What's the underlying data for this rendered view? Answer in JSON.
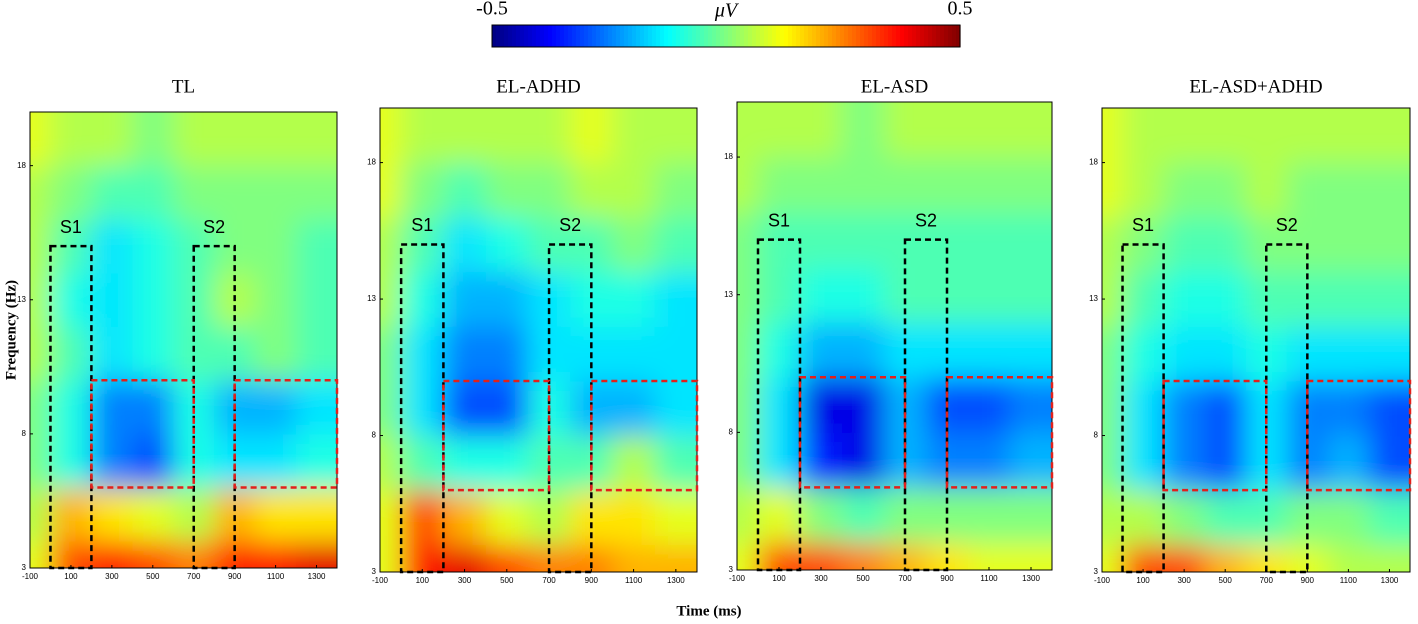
{
  "figure": {
    "xlabel": "Time (ms)",
    "ylabel": "Frequency (Hz)",
    "colorbar": {
      "label": "μV",
      "lim": [
        -0.5,
        0.5
      ],
      "ticks": [
        -0.5,
        0.5
      ],
      "colormap": "jet"
    }
  },
  "chart_data": [
    {
      "type": "heatmap",
      "title": "TL",
      "x": [
        -100,
        100,
        300,
        500,
        700,
        900,
        1100,
        1300
      ],
      "y": [
        3,
        5,
        7,
        9,
        11,
        13,
        15,
        17,
        19
      ],
      "z": [
        [
          0.1,
          0.3,
          0.35,
          0.3,
          0.25,
          0.35,
          0.35,
          0.4
        ],
        [
          0.05,
          0.2,
          0.15,
          0.1,
          0.05,
          0.2,
          0.15,
          0.15
        ],
        [
          0.0,
          -0.1,
          -0.25,
          -0.3,
          -0.1,
          -0.15,
          -0.15,
          -0.1
        ],
        [
          0.0,
          -0.1,
          -0.25,
          -0.25,
          -0.1,
          -0.2,
          -0.2,
          -0.15
        ],
        [
          0.05,
          -0.05,
          -0.15,
          -0.1,
          -0.05,
          -0.05,
          0.0,
          -0.05
        ],
        [
          0.05,
          -0.1,
          -0.15,
          -0.1,
          -0.05,
          0.05,
          0.0,
          -0.05
        ],
        [
          0.05,
          -0.05,
          -0.15,
          -0.1,
          -0.05,
          0.0,
          0.0,
          -0.05
        ],
        [
          0.05,
          0.0,
          -0.05,
          -0.05,
          0.0,
          0.0,
          0.0,
          0.0
        ],
        [
          0.1,
          0.05,
          0.05,
          0.0,
          0.05,
          0.05,
          0.05,
          0.05
        ]
      ],
      "xlim": [
        -100,
        1400
      ],
      "ylim": [
        3,
        20
      ],
      "xticks": [
        -100,
        100,
        300,
        500,
        700,
        900,
        1100,
        1300
      ],
      "yticks": [
        3,
        8,
        13,
        18
      ],
      "windows": [
        {
          "label": "S1",
          "x": [
            0,
            200
          ],
          "y": [
            3,
            15
          ]
        },
        {
          "label": "S2",
          "x": [
            700,
            900
          ],
          "y": [
            3,
            15
          ]
        }
      ],
      "rois": [
        {
          "x": [
            200,
            700
          ],
          "y": [
            6,
            10
          ]
        },
        {
          "x": [
            900,
            1400
          ],
          "y": [
            6,
            10
          ]
        }
      ]
    },
    {
      "type": "heatmap",
      "title": "EL-ADHD",
      "x": [
        -100,
        100,
        300,
        500,
        700,
        900,
        1100,
        1300
      ],
      "y": [
        3,
        5,
        7,
        9,
        11,
        13,
        15,
        17,
        19
      ],
      "z": [
        [
          0.1,
          0.35,
          0.4,
          0.3,
          0.25,
          0.25,
          0.2,
          0.2
        ],
        [
          0.1,
          0.3,
          0.2,
          0.1,
          0.05,
          0.15,
          0.15,
          0.1
        ],
        [
          0.05,
          -0.05,
          -0.1,
          -0.1,
          -0.05,
          -0.05,
          0.05,
          -0.05
        ],
        [
          0.0,
          -0.15,
          -0.3,
          -0.3,
          -0.1,
          -0.2,
          -0.2,
          -0.15
        ],
        [
          0.0,
          -0.15,
          -0.25,
          -0.25,
          -0.15,
          -0.15,
          -0.15,
          -0.15
        ],
        [
          0.05,
          -0.1,
          -0.2,
          -0.2,
          -0.15,
          -0.1,
          -0.1,
          -0.15
        ],
        [
          0.05,
          -0.05,
          -0.15,
          -0.1,
          -0.05,
          -0.05,
          0.0,
          -0.05
        ],
        [
          0.1,
          0.0,
          -0.05,
          0.0,
          0.0,
          0.05,
          0.05,
          0.0
        ],
        [
          0.1,
          0.05,
          0.05,
          0.05,
          0.05,
          0.1,
          0.05,
          0.05
        ]
      ],
      "xlim": [
        -100,
        1400
      ],
      "ylim": [
        3,
        20
      ],
      "xticks": [
        -100,
        100,
        300,
        500,
        700,
        900,
        1100,
        1300
      ],
      "yticks": [
        3,
        8,
        13,
        18
      ],
      "windows": [
        {
          "label": "S1",
          "x": [
            0,
            200
          ],
          "y": [
            3,
            15
          ]
        },
        {
          "label": "S2",
          "x": [
            700,
            900
          ],
          "y": [
            3,
            15
          ]
        }
      ],
      "rois": [
        {
          "x": [
            200,
            700
          ],
          "y": [
            6,
            10
          ]
        },
        {
          "x": [
            900,
            1400
          ],
          "y": [
            6,
            10
          ]
        }
      ]
    },
    {
      "type": "heatmap",
      "title": "EL-ASD",
      "x": [
        -100,
        100,
        300,
        500,
        700,
        900,
        1100,
        1300
      ],
      "y": [
        3,
        5,
        7,
        9,
        11,
        13,
        15,
        17,
        19
      ],
      "z": [
        [
          0.1,
          0.3,
          0.3,
          0.25,
          0.2,
          0.15,
          0.1,
          0.1
        ],
        [
          0.05,
          0.1,
          0.0,
          -0.05,
          0.0,
          0.0,
          0.0,
          0.0
        ],
        [
          0.0,
          -0.15,
          -0.35,
          -0.4,
          -0.2,
          -0.25,
          -0.25,
          -0.2
        ],
        [
          0.0,
          -0.15,
          -0.4,
          -0.4,
          -0.2,
          -0.3,
          -0.3,
          -0.25
        ],
        [
          0.0,
          -0.1,
          -0.2,
          -0.2,
          -0.15,
          -0.15,
          -0.15,
          -0.15
        ],
        [
          0.0,
          -0.05,
          -0.1,
          -0.1,
          -0.05,
          -0.05,
          -0.05,
          -0.05
        ],
        [
          0.0,
          -0.05,
          -0.05,
          -0.05,
          -0.05,
          -0.05,
          -0.05,
          -0.05
        ],
        [
          0.05,
          0.0,
          0.0,
          0.0,
          0.0,
          0.0,
          0.0,
          0.0
        ],
        [
          0.05,
          0.05,
          0.05,
          0.0,
          0.05,
          0.05,
          0.05,
          0.05
        ]
      ],
      "xlim": [
        -100,
        1400
      ],
      "ylim": [
        3,
        20
      ],
      "xticks": [
        -100,
        100,
        300,
        500,
        700,
        900,
        1100,
        1300
      ],
      "yticks": [
        3,
        8,
        13,
        18
      ],
      "windows": [
        {
          "label": "S1",
          "x": [
            0,
            200
          ],
          "y": [
            3,
            15
          ]
        },
        {
          "label": "S2",
          "x": [
            700,
            900
          ],
          "y": [
            3,
            15
          ]
        }
      ],
      "rois": [
        {
          "x": [
            200,
            700
          ],
          "y": [
            6,
            10
          ]
        },
        {
          "x": [
            900,
            1400
          ],
          "y": [
            6,
            10
          ]
        }
      ]
    },
    {
      "type": "heatmap",
      "title": "EL-ASD+ADHD",
      "x": [
        -100,
        100,
        300,
        500,
        700,
        900,
        1100,
        1300
      ],
      "y": [
        3,
        5,
        7,
        9,
        11,
        13,
        15,
        17,
        19
      ],
      "z": [
        [
          0.1,
          0.3,
          0.3,
          0.2,
          0.15,
          0.1,
          0.05,
          0.05
        ],
        [
          0.05,
          0.05,
          0.0,
          -0.05,
          -0.05,
          0.0,
          0.0,
          -0.05
        ],
        [
          0.0,
          -0.15,
          -0.25,
          -0.3,
          -0.15,
          -0.25,
          -0.2,
          -0.3
        ],
        [
          0.0,
          -0.15,
          -0.25,
          -0.3,
          -0.15,
          -0.25,
          -0.25,
          -0.3
        ],
        [
          0.0,
          -0.1,
          -0.15,
          -0.15,
          -0.1,
          -0.15,
          -0.15,
          -0.15
        ],
        [
          0.05,
          -0.05,
          -0.1,
          -0.1,
          -0.05,
          -0.05,
          -0.05,
          -0.05
        ],
        [
          0.05,
          0.0,
          -0.05,
          -0.05,
          0.0,
          0.0,
          0.0,
          0.0
        ],
        [
          0.1,
          0.05,
          0.0,
          0.0,
          0.05,
          0.0,
          0.0,
          0.0
        ],
        [
          0.1,
          0.05,
          0.05,
          0.05,
          0.05,
          0.05,
          0.05,
          0.05
        ]
      ],
      "xlim": [
        -100,
        1400
      ],
      "ylim": [
        3,
        20
      ],
      "xticks": [
        -100,
        100,
        300,
        500,
        700,
        900,
        1100,
        1300
      ],
      "yticks": [
        3,
        8,
        13,
        18
      ],
      "windows": [
        {
          "label": "S1",
          "x": [
            0,
            200
          ],
          "y": [
            3,
            15
          ]
        },
        {
          "label": "S2",
          "x": [
            700,
            900
          ],
          "y": [
            3,
            15
          ]
        }
      ],
      "rois": [
        {
          "x": [
            200,
            700
          ],
          "y": [
            6,
            10
          ]
        },
        {
          "x": [
            900,
            1400
          ],
          "y": [
            6,
            10
          ]
        }
      ]
    }
  ]
}
